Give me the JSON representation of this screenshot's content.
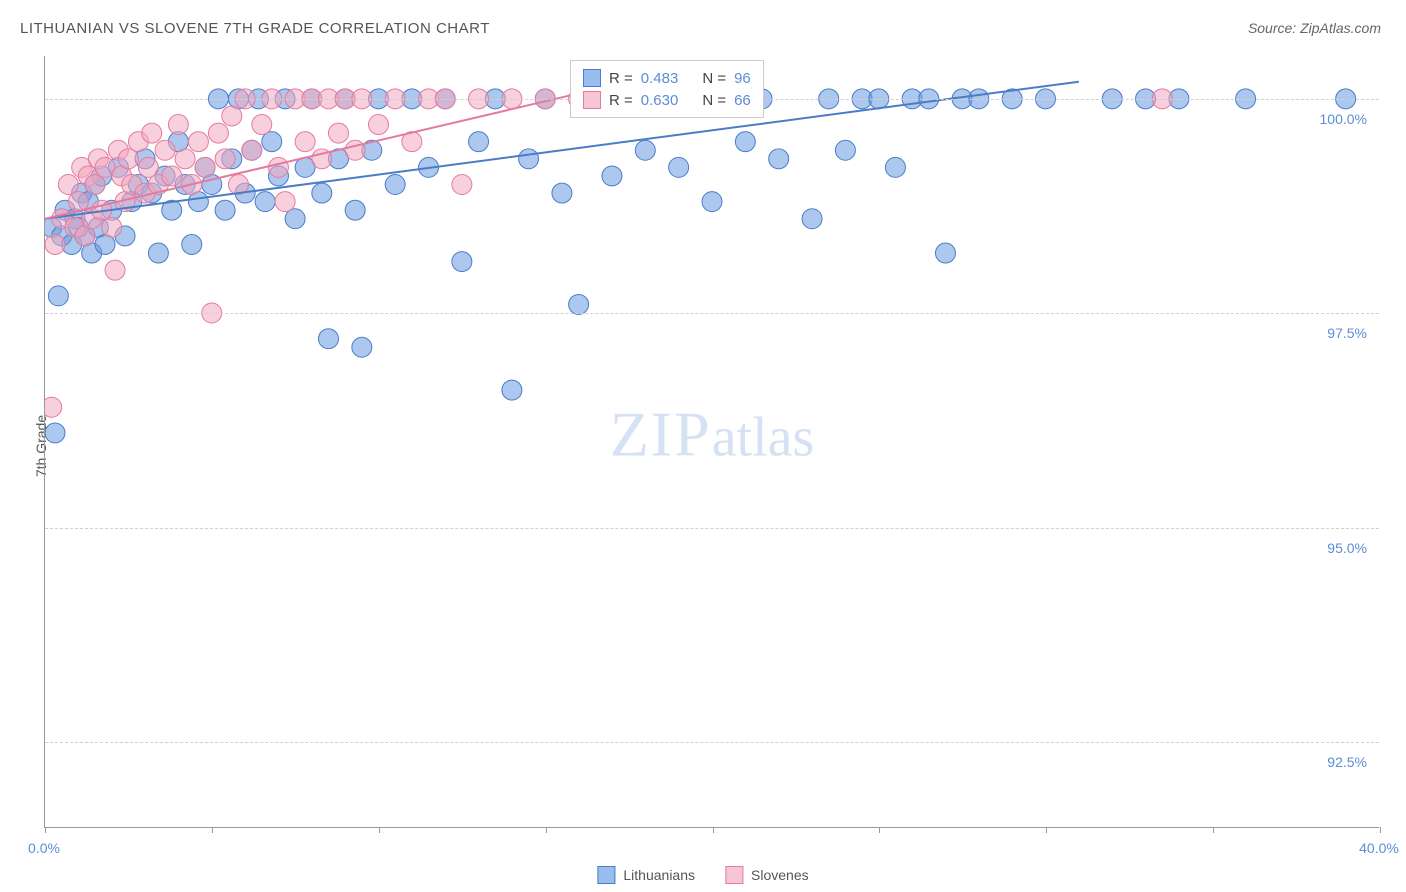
{
  "title": "LITHUANIAN VS SLOVENE 7TH GRADE CORRELATION CHART",
  "source_label": "Source: ZipAtlas.com",
  "y_axis_title": "7th Grade",
  "watermark": {
    "part1": "ZIP",
    "part2": "atlas"
  },
  "chart": {
    "type": "scatter",
    "xlim": [
      0,
      40
    ],
    "ylim": [
      91.5,
      100.5
    ],
    "y_ticks": [
      92.5,
      95.0,
      97.5,
      100.0
    ],
    "y_tick_labels": [
      "92.5%",
      "95.0%",
      "97.5%",
      "100.0%"
    ],
    "x_ticks": [
      0,
      5,
      10,
      15,
      20,
      25,
      30,
      35,
      40
    ],
    "x_tick_labels_shown": {
      "0": "0.0%",
      "40": "40.0%"
    },
    "background_color": "#ffffff",
    "grid_color": "#d0d0d0",
    "axis_color": "#999999",
    "tick_label_color": "#5b8dd6",
    "marker_radius": 10,
    "marker_opacity": 0.55,
    "line_width": 2,
    "series": [
      {
        "name": "Lithuanians",
        "color": "#6a9be0",
        "stroke": "#4a7cc7",
        "R": "0.483",
        "N": "96",
        "trend": {
          "x1": 0,
          "y1": 98.6,
          "x2": 31,
          "y2": 100.2
        },
        "points": [
          [
            0.2,
            98.5
          ],
          [
            0.3,
            96.1
          ],
          [
            0.4,
            97.7
          ],
          [
            0.5,
            98.4
          ],
          [
            0.6,
            98.7
          ],
          [
            0.8,
            98.3
          ],
          [
            0.9,
            98.6
          ],
          [
            1.0,
            98.5
          ],
          [
            1.1,
            98.9
          ],
          [
            1.2,
            98.4
          ],
          [
            1.3,
            98.8
          ],
          [
            1.4,
            98.2
          ],
          [
            1.5,
            99.0
          ],
          [
            1.6,
            98.5
          ],
          [
            1.7,
            99.1
          ],
          [
            1.8,
            98.3
          ],
          [
            2.0,
            98.7
          ],
          [
            2.2,
            99.2
          ],
          [
            2.4,
            98.4
          ],
          [
            2.6,
            98.8
          ],
          [
            2.8,
            99.0
          ],
          [
            3.0,
            99.3
          ],
          [
            3.2,
            98.9
          ],
          [
            3.4,
            98.2
          ],
          [
            3.6,
            99.1
          ],
          [
            3.8,
            98.7
          ],
          [
            4.0,
            99.5
          ],
          [
            4.2,
            99.0
          ],
          [
            4.4,
            98.3
          ],
          [
            4.6,
            98.8
          ],
          [
            4.8,
            99.2
          ],
          [
            5.0,
            99.0
          ],
          [
            5.2,
            100.0
          ],
          [
            5.4,
            98.7
          ],
          [
            5.6,
            99.3
          ],
          [
            5.8,
            100.0
          ],
          [
            6.0,
            98.9
          ],
          [
            6.2,
            99.4
          ],
          [
            6.4,
            100.0
          ],
          [
            6.6,
            98.8
          ],
          [
            6.8,
            99.5
          ],
          [
            7.0,
            99.1
          ],
          [
            7.2,
            100.0
          ],
          [
            7.5,
            98.6
          ],
          [
            7.8,
            99.2
          ],
          [
            8.0,
            100.0
          ],
          [
            8.3,
            98.9
          ],
          [
            8.5,
            97.2
          ],
          [
            8.8,
            99.3
          ],
          [
            9.0,
            100.0
          ],
          [
            9.3,
            98.7
          ],
          [
            9.5,
            97.1
          ],
          [
            9.8,
            99.4
          ],
          [
            10.0,
            100.0
          ],
          [
            10.5,
            99.0
          ],
          [
            11.0,
            100.0
          ],
          [
            11.5,
            99.2
          ],
          [
            12.0,
            100.0
          ],
          [
            12.5,
            98.1
          ],
          [
            13.0,
            99.5
          ],
          [
            13.5,
            100.0
          ],
          [
            14.0,
            96.6
          ],
          [
            14.5,
            99.3
          ],
          [
            15.0,
            100.0
          ],
          [
            15.5,
            98.9
          ],
          [
            16.0,
            97.6
          ],
          [
            16.5,
            100.0
          ],
          [
            17.0,
            99.1
          ],
          [
            17.5,
            100.0
          ],
          [
            18.0,
            99.4
          ],
          [
            18.5,
            100.0
          ],
          [
            19.0,
            99.2
          ],
          [
            19.5,
            100.0
          ],
          [
            20.0,
            98.8
          ],
          [
            20.5,
            100.0
          ],
          [
            21.0,
            99.5
          ],
          [
            21.5,
            100.0
          ],
          [
            22.0,
            99.3
          ],
          [
            23.0,
            98.6
          ],
          [
            23.5,
            100.0
          ],
          [
            24.0,
            99.4
          ],
          [
            24.5,
            100.0
          ],
          [
            25.0,
            100.0
          ],
          [
            25.5,
            99.2
          ],
          [
            26.0,
            100.0
          ],
          [
            26.5,
            100.0
          ],
          [
            27.0,
            98.2
          ],
          [
            27.5,
            100.0
          ],
          [
            28.0,
            100.0
          ],
          [
            29.0,
            100.0
          ],
          [
            30.0,
            100.0
          ],
          [
            32.0,
            100.0
          ],
          [
            33.0,
            100.0
          ],
          [
            34.0,
            100.0
          ],
          [
            36.0,
            100.0
          ],
          [
            39.0,
            100.0
          ]
        ]
      },
      {
        "name": "Slovenes",
        "color": "#f2a8c0",
        "stroke": "#e57a9e",
        "R": "0.630",
        "N": "66",
        "trend": {
          "x1": 0,
          "y1": 98.6,
          "x2": 17.5,
          "y2": 100.2
        },
        "points": [
          [
            0.2,
            96.4
          ],
          [
            0.3,
            98.3
          ],
          [
            0.5,
            98.6
          ],
          [
            0.7,
            99.0
          ],
          [
            0.9,
            98.5
          ],
          [
            1.0,
            98.8
          ],
          [
            1.1,
            99.2
          ],
          [
            1.2,
            98.4
          ],
          [
            1.3,
            99.1
          ],
          [
            1.4,
            98.6
          ],
          [
            1.5,
            99.0
          ],
          [
            1.6,
            99.3
          ],
          [
            1.7,
            98.7
          ],
          [
            1.8,
            99.2
          ],
          [
            2.0,
            98.5
          ],
          [
            2.1,
            98.0
          ],
          [
            2.2,
            99.4
          ],
          [
            2.3,
            99.1
          ],
          [
            2.4,
            98.8
          ],
          [
            2.5,
            99.3
          ],
          [
            2.6,
            99.0
          ],
          [
            2.8,
            99.5
          ],
          [
            3.0,
            98.9
          ],
          [
            3.1,
            99.2
          ],
          [
            3.2,
            99.6
          ],
          [
            3.4,
            99.0
          ],
          [
            3.6,
            99.4
          ],
          [
            3.8,
            99.1
          ],
          [
            4.0,
            99.7
          ],
          [
            4.2,
            99.3
          ],
          [
            4.4,
            99.0
          ],
          [
            4.6,
            99.5
          ],
          [
            4.8,
            99.2
          ],
          [
            5.0,
            97.5
          ],
          [
            5.2,
            99.6
          ],
          [
            5.4,
            99.3
          ],
          [
            5.6,
            99.8
          ],
          [
            5.8,
            99.0
          ],
          [
            6.0,
            100.0
          ],
          [
            6.2,
            99.4
          ],
          [
            6.5,
            99.7
          ],
          [
            6.8,
            100.0
          ],
          [
            7.0,
            99.2
          ],
          [
            7.2,
            98.8
          ],
          [
            7.5,
            100.0
          ],
          [
            7.8,
            99.5
          ],
          [
            8.0,
            100.0
          ],
          [
            8.3,
            99.3
          ],
          [
            8.5,
            100.0
          ],
          [
            8.8,
            99.6
          ],
          [
            9.0,
            100.0
          ],
          [
            9.3,
            99.4
          ],
          [
            9.5,
            100.0
          ],
          [
            10.0,
            99.7
          ],
          [
            10.5,
            100.0
          ],
          [
            11.0,
            99.5
          ],
          [
            11.5,
            100.0
          ],
          [
            12.0,
            100.0
          ],
          [
            12.5,
            99.0
          ],
          [
            13.0,
            100.0
          ],
          [
            14.0,
            100.0
          ],
          [
            15.0,
            100.0
          ],
          [
            16.0,
            100.0
          ],
          [
            17.0,
            100.0
          ],
          [
            18.0,
            100.0
          ],
          [
            33.5,
            100.0
          ]
        ]
      }
    ]
  },
  "legend_top": [
    {
      "swatch_fill": "#9abdf0",
      "swatch_stroke": "#4a7cc7",
      "r_label": "R =",
      "r_val": "0.483",
      "n_label": "N =",
      "n_val": "96"
    },
    {
      "swatch_fill": "#f7c6d6",
      "swatch_stroke": "#e57a9e",
      "r_label": "R =",
      "r_val": "0.630",
      "n_label": "N =",
      "n_val": "66"
    }
  ],
  "legend_bottom": [
    {
      "swatch_fill": "#9abdf0",
      "swatch_stroke": "#4a7cc7",
      "label": "Lithuanians"
    },
    {
      "swatch_fill": "#f7c6d6",
      "swatch_stroke": "#e57a9e",
      "label": "Slovenes"
    }
  ]
}
